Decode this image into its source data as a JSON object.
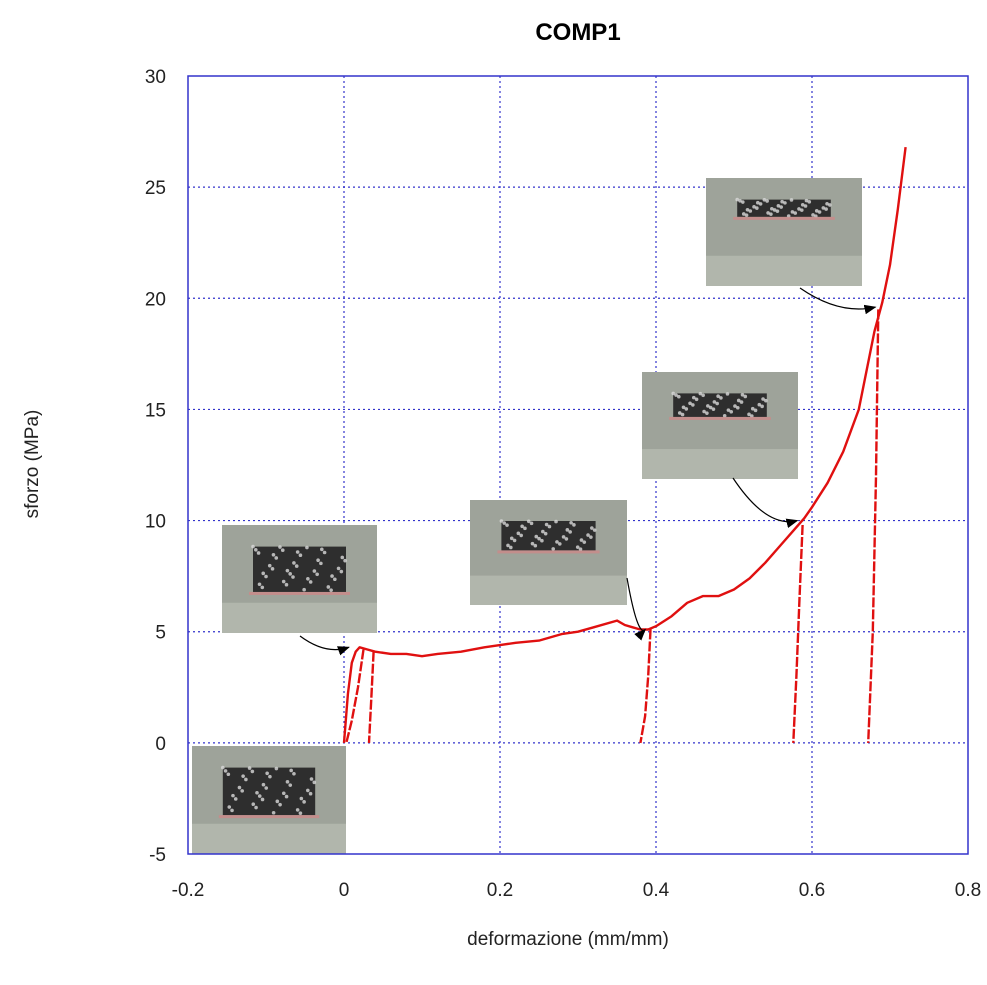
{
  "chart_data": {
    "type": "line",
    "title": "COMP1",
    "xlabel": "deformazione (mm/mm)",
    "ylabel": "sforzo (MPa)",
    "xlim": [
      -0.2,
      0.8
    ],
    "ylim": [
      -5,
      30
    ],
    "xticks": [
      -0.2,
      0,
      0.2,
      0.4,
      0.6,
      0.8
    ],
    "xtick_labels": [
      "-0.2",
      "0",
      "0.2",
      "0.4",
      "0.6",
      "0.8"
    ],
    "yticks": [
      -5,
      0,
      5,
      10,
      15,
      20,
      25,
      30
    ],
    "ytick_labels": [
      "-5",
      "0",
      "5",
      "10",
      "15",
      "20",
      "25",
      "30"
    ],
    "grid": true,
    "colors": {
      "frame": "#3333cc",
      "grid": "#3333cc",
      "curve": "#e01010",
      "photo_bg": "#9ea39a",
      "photo_sample": "#2e2e2e"
    },
    "series": [
      {
        "x": [
          0.0,
          0.005,
          0.01,
          0.015,
          0.02,
          0.025,
          0.03,
          0.04,
          0.06,
          0.08,
          0.1,
          0.12,
          0.15,
          0.18,
          0.2,
          0.22,
          0.25,
          0.28,
          0.3,
          0.32,
          0.35,
          0.36,
          0.37,
          0.38,
          0.39,
          0.4,
          0.42,
          0.44,
          0.46,
          0.48,
          0.5,
          0.52,
          0.54,
          0.56,
          0.58,
          0.59,
          0.6,
          0.62,
          0.64,
          0.66,
          0.68,
          0.69,
          0.7,
          0.71,
          0.72
        ],
        "y": [
          0.0,
          2.2,
          3.6,
          4.1,
          4.3,
          4.25,
          4.2,
          4.1,
          4.0,
          4.0,
          3.9,
          4.0,
          4.1,
          4.3,
          4.4,
          4.5,
          4.6,
          4.9,
          5.0,
          5.2,
          5.5,
          5.3,
          5.2,
          5.1,
          5.1,
          5.25,
          5.7,
          6.3,
          6.6,
          6.6,
          6.9,
          7.4,
          8.1,
          8.9,
          9.7,
          10.1,
          10.6,
          11.7,
          13.1,
          15.0,
          18.5,
          19.8,
          21.5,
          24.0,
          26.8
        ]
      }
    ],
    "unload_segments": [
      {
        "x": [
          0.025,
          0.018,
          0.01,
          0.003
        ],
        "y": [
          4.2,
          2.5,
          1.0,
          0.0
        ]
      },
      {
        "x": [
          0.038,
          0.035,
          0.032
        ],
        "y": [
          4.1,
          2.0,
          0.0
        ]
      },
      {
        "x": [
          0.393,
          0.39,
          0.386,
          0.38
        ],
        "y": [
          5.1,
          3.0,
          1.2,
          0.0
        ]
      },
      {
        "x": [
          0.588,
          0.584,
          0.58,
          0.576
        ],
        "y": [
          9.8,
          6.5,
          3.0,
          0.0
        ]
      },
      {
        "x": [
          0.685,
          0.682,
          0.678,
          0.672
        ],
        "y": [
          19.5,
          12.0,
          5.0,
          0.0
        ]
      }
    ],
    "annotations": [
      {
        "kind": "photo",
        "target_x": 0.01,
        "target_y": 4.3
      },
      {
        "kind": "photo",
        "target_x": 0.39,
        "target_y": 5.1
      },
      {
        "kind": "photo",
        "target_x": 0.585,
        "target_y": 10.0
      },
      {
        "kind": "photo",
        "target_x": 0.685,
        "target_y": 19.6
      },
      {
        "kind": "photo",
        "target_x": -0.1,
        "target_y": -2.5
      }
    ]
  }
}
